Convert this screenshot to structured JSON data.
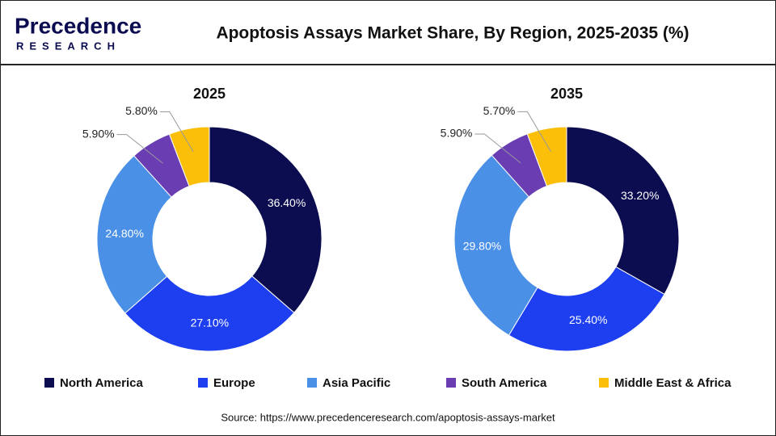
{
  "header": {
    "logo": {
      "name": "Precedence",
      "tagline": "RESEARCH"
    },
    "title": "Apoptosis Assays Market Share, By Region, 2025-2035 (%)"
  },
  "chart_data": [
    {
      "type": "donut",
      "title": "2025",
      "categories": [
        "North America",
        "Europe",
        "Asia Pacific",
        "South America",
        "Middle East & Africa"
      ],
      "values": [
        36.4,
        27.1,
        24.8,
        5.9,
        5.8
      ],
      "value_labels": [
        "36.40%",
        "27.10%",
        "24.80%",
        "5.90%",
        "5.80%"
      ],
      "colors": [
        "#0c0c50",
        "#1e3ff0",
        "#4a90e6",
        "#6a3db3",
        "#fbbf0a"
      ]
    },
    {
      "type": "donut",
      "title": "2035",
      "categories": [
        "North America",
        "Europe",
        "Asia Pacific",
        "South America",
        "Middle East & Africa"
      ],
      "values": [
        33.2,
        25.4,
        29.8,
        5.9,
        5.7
      ],
      "value_labels": [
        "33.20%",
        "25.40%",
        "29.80%",
        "5.90%",
        "5.70%"
      ],
      "colors": [
        "#0c0c50",
        "#1e3ff0",
        "#4a90e6",
        "#6a3db3",
        "#fbbf0a"
      ]
    }
  ],
  "source": "Source: https://www.precedenceresearch.com/apoptosis-assays-market"
}
